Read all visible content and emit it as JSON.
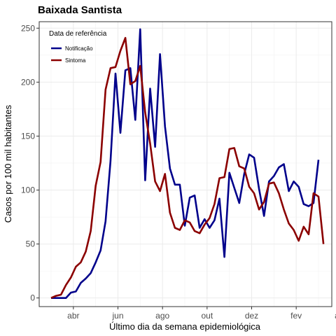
{
  "chart_data": {
    "type": "line",
    "title": "Baixada Santista",
    "xlabel": "Último dia da semana epidemiológica",
    "ylabel": "Casos por 100 mil habitantes",
    "x_tick_labels": [
      "abr",
      "jun",
      "ago",
      "out",
      "dez",
      "fev",
      "abr"
    ],
    "y_ticks": [
      0,
      50,
      100,
      150,
      200,
      250
    ],
    "ylim": [
      -8,
      256
    ],
    "grid": true,
    "legend": {
      "title": "Data de referência",
      "position": "top-left"
    },
    "colors": {
      "Notificação": "#00008B",
      "Sintoma": "#8B0000"
    },
    "series": [
      {
        "name": "Notificação",
        "values": [
          0,
          0,
          0,
          0,
          5,
          6,
          14,
          18,
          23,
          33,
          44,
          71,
          127,
          208,
          153,
          211,
          213,
          165,
          249,
          109,
          194,
          140,
          226,
          159,
          120,
          105,
          105,
          67,
          93,
          95,
          65,
          73,
          65,
          72,
          92,
          38,
          116,
          102,
          88,
          115,
          133,
          130,
          101,
          76,
          108,
          113,
          121,
          124,
          99,
          108,
          103,
          87,
          85,
          88,
          128
        ]
      },
      {
        "name": "Sintoma",
        "values": [
          0,
          2,
          3,
          12,
          19,
          29,
          33,
          43,
          62,
          104,
          126,
          193,
          213,
          214,
          229,
          241,
          198,
          201,
          215,
          172,
          143,
          108,
          99,
          115,
          79,
          65,
          63,
          72,
          70,
          62,
          60,
          68,
          74,
          87,
          111,
          112,
          138,
          139,
          122,
          120,
          103,
          97,
          82,
          89,
          106,
          107,
          97,
          82,
          69,
          63,
          53,
          66,
          59,
          97,
          94,
          50
        ]
      }
    ]
  }
}
